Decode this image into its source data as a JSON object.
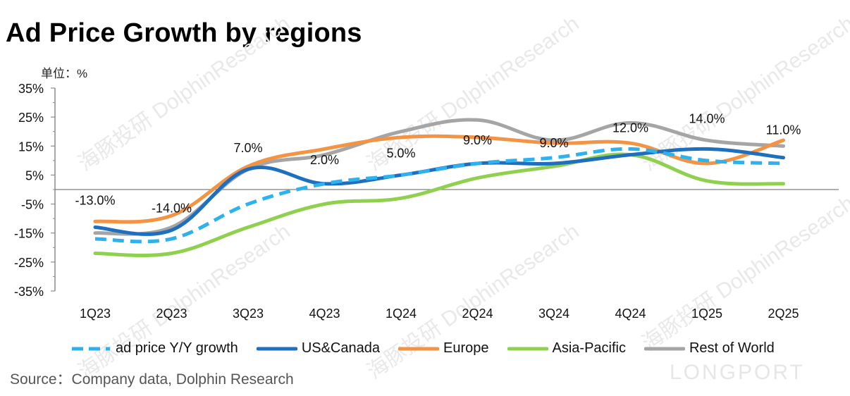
{
  "title": "Ad Price Growth by regions",
  "unit_label": "单位：%",
  "source": "Source：Company data, Dolphin Research",
  "watermark": {
    "cn": "海豚投研",
    "en": "DolphinResearch",
    "logo": "LONGPORT"
  },
  "chart_data": {
    "type": "line",
    "categories": [
      "1Q23",
      "2Q23",
      "3Q23",
      "4Q23",
      "1Q24",
      "2Q24",
      "3Q24",
      "4Q24",
      "1Q25",
      "2Q25"
    ],
    "ylim": [
      -35,
      35
    ],
    "yticks": [
      "35%",
      "25%",
      "15%",
      "5%",
      "-5%",
      "-15%",
      "-25%",
      "-35%"
    ],
    "ytick_values": [
      35,
      25,
      15,
      5,
      -5,
      -15,
      -25,
      -35
    ],
    "series": [
      {
        "name": "ad price Y/Y growth",
        "color": "#2eb2ee",
        "dashed": true,
        "values": [
          -17,
          -17,
          -5,
          2,
          5,
          9,
          11,
          14,
          10,
          9
        ]
      },
      {
        "name": "US&Canada",
        "color": "#1f6fbf",
        "dashed": false,
        "values": [
          -13,
          -14,
          7,
          2,
          5,
          9,
          9,
          12,
          14,
          11
        ]
      },
      {
        "name": "Europe",
        "color": "#f39344",
        "dashed": false,
        "values": [
          -11,
          -9,
          8,
          14,
          18,
          18,
          16,
          16,
          9,
          17
        ]
      },
      {
        "name": "Asia-Pacific",
        "color": "#8fd14f",
        "dashed": false,
        "values": [
          -22,
          -22,
          -13,
          -5,
          -3,
          4,
          8,
          12,
          3,
          2
        ]
      },
      {
        "name": "Rest of World",
        "color": "#a5a5a5",
        "dashed": false,
        "values": [
          -15,
          -13,
          7,
          12,
          20,
          24,
          17,
          23,
          17,
          15
        ]
      }
    ],
    "data_labels": [
      "-13.0%",
      "-14.0%",
      "7.0%",
      "2.0%",
      "5.0%",
      "9.0%",
      "9.0%",
      "12.0%",
      "14.0%",
      "11.0%"
    ],
    "legend": "bottom",
    "grid": false
  }
}
